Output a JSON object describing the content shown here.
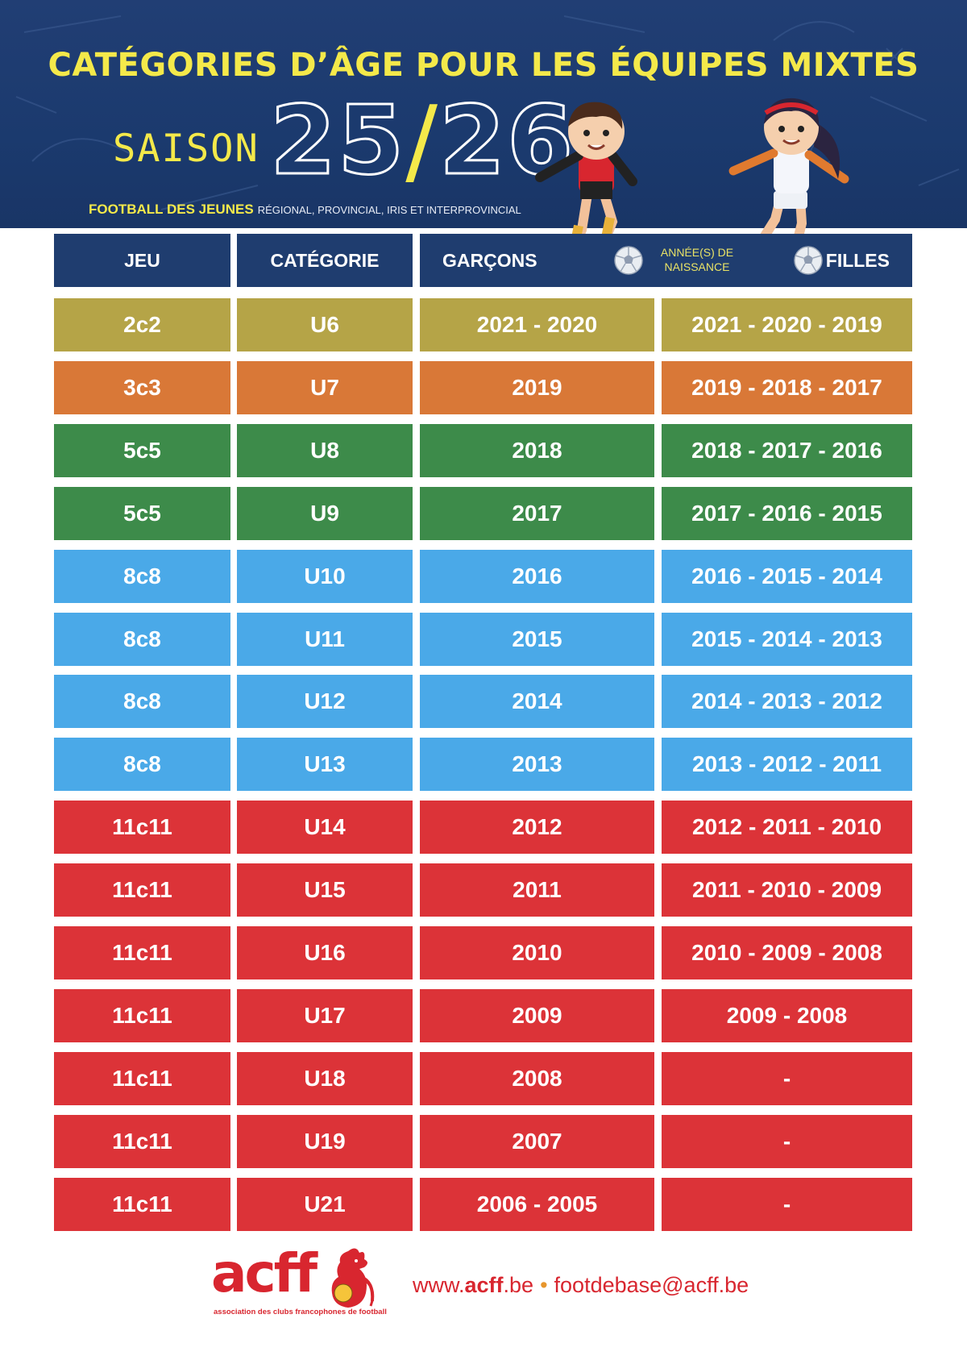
{
  "header": {
    "title": "CATÉGORIES D’ÂGE POUR LES ÉQUIPES MIXTES",
    "saison_label": "SAISON",
    "season_left": "25",
    "season_slash": "/",
    "season_right": "26",
    "subtitle_strong": "FOOTBALL DES JEUNES",
    "subtitle_light": "RÉGIONAL, PROVINCIAL, IRIS ET INTERPROVINCIAL"
  },
  "table": {
    "headers": {
      "jeu": "JEU",
      "categorie": "CATÉGORIE",
      "garcons": "GARÇONS",
      "birth_years_line1": "ANNÉE(S) DE",
      "birth_years_line2": "NAISSANCE",
      "filles": "FILLES"
    },
    "rows": [
      {
        "jeu": "2c2",
        "categorie": "U6",
        "garcons": "2021 - 2020",
        "filles": "2021 - 2020 - 2019",
        "color": "#b5a447"
      },
      {
        "jeu": "3c3",
        "categorie": "U7",
        "garcons": "2019",
        "filles": "2019 - 2018 - 2017",
        "color": "#d97837"
      },
      {
        "jeu": "5c5",
        "categorie": "U8",
        "garcons": "2018",
        "filles": "2018 - 2017 - 2016",
        "color": "#3d8b4a"
      },
      {
        "jeu": "5c5",
        "categorie": "U9",
        "garcons": "2017",
        "filles": "2017 - 2016 - 2015",
        "color": "#3d8b4a"
      },
      {
        "jeu": "8c8",
        "categorie": "U10",
        "garcons": "2016",
        "filles": "2016 - 2015 - 2014",
        "color": "#4aa9e8"
      },
      {
        "jeu": "8c8",
        "categorie": "U11",
        "garcons": "2015",
        "filles": "2015 - 2014 - 2013",
        "color": "#4aa9e8"
      },
      {
        "jeu": "8c8",
        "categorie": "U12",
        "garcons": "2014",
        "filles": "2014 - 2013 - 2012",
        "color": "#4aa9e8"
      },
      {
        "jeu": "8c8",
        "categorie": "U13",
        "garcons": "2013",
        "filles": "2013 - 2012 - 2011",
        "color": "#4aa9e8"
      },
      {
        "jeu": "11c11",
        "categorie": "U14",
        "garcons": "2012",
        "filles": "2012 - 2011 - 2010",
        "color": "#dc3338"
      },
      {
        "jeu": "11c11",
        "categorie": "U15",
        "garcons": "2011",
        "filles": "2011 - 2010 - 2009",
        "color": "#dc3338"
      },
      {
        "jeu": "11c11",
        "categorie": "U16",
        "garcons": "2010",
        "filles": "2010 - 2009 - 2008",
        "color": "#dc3338"
      },
      {
        "jeu": "11c11",
        "categorie": "U17",
        "garcons": "2009",
        "filles": "2009 - 2008",
        "color": "#dc3338"
      },
      {
        "jeu": "11c11",
        "categorie": "U18",
        "garcons": "2008",
        "filles": "-",
        "color": "#dc3338"
      },
      {
        "jeu": "11c11",
        "categorie": "U19",
        "garcons": "2007",
        "filles": "-",
        "color": "#dc3338"
      },
      {
        "jeu": "11c11",
        "categorie": "U21",
        "garcons": "2006 - 2005",
        "filles": "-",
        "color": "#dc3338"
      }
    ]
  },
  "footer": {
    "logo_text": "acff",
    "logo_tagline": "association des clubs francophones de football",
    "url_prefix": "www.",
    "url_bold": "acff",
    "url_suffix": ".be",
    "separator": "•",
    "email": "footdebase@acff.be"
  },
  "colors": {
    "banner": "#1b3a6e",
    "title_yellow": "#f4e94a",
    "header_cells": "#1f3d6f",
    "brand_red": "#d8262f"
  }
}
